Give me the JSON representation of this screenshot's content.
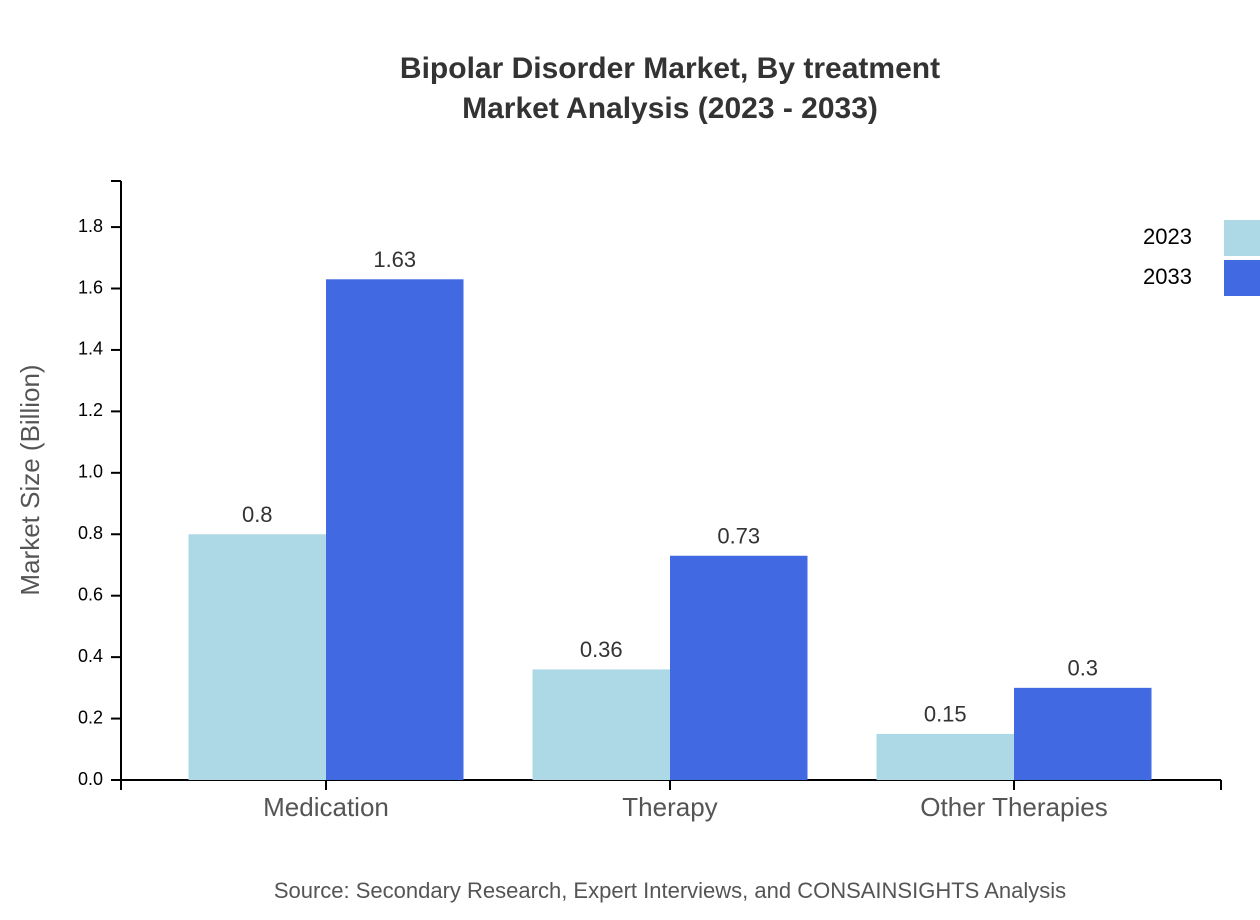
{
  "chart_data": {
    "type": "bar",
    "title": "Bipolar Disorder Market, By treatment",
    "subtitle": "Market Analysis (2023 - 2033)",
    "y_label": "Market Size (Billion)",
    "source": "Source: Secondary Research, Expert Interviews, and CONSAINSIGHTS Analysis",
    "categories": [
      "Medication",
      "Therapy",
      "Other Therapies"
    ],
    "series": [
      {
        "name": "2023",
        "color": "#add8e6",
        "values": [
          0.8,
          0.36,
          0.15
        ]
      },
      {
        "name": "2033",
        "color": "#4169e1",
        "values": [
          1.63,
          0.73,
          0.3
        ]
      }
    ],
    "ylim": [
      0,
      1.95
    ],
    "yticks": [
      {
        "value": 0,
        "label": "0.0"
      },
      0.2,
      0.4,
      0.6,
      0.8,
      {
        "value": 1,
        "label": "1.0"
      },
      1.2,
      1.4,
      1.6,
      1.8
    ],
    "legend": "top-right"
  }
}
